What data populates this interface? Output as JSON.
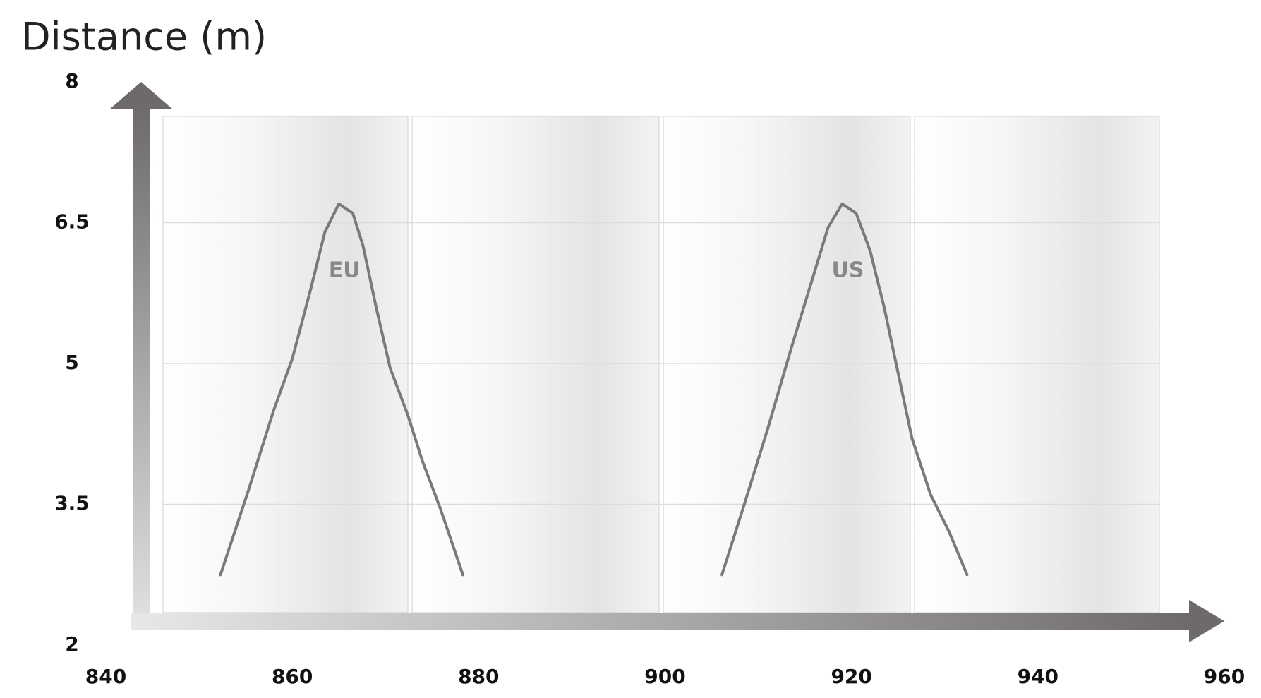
{
  "chart_data": {
    "type": "line",
    "title": "Distance (m)",
    "series": [
      {
        "name": "EU",
        "color": "#7a7a7a",
        "x": [
          852.3,
          855.3,
          858,
          860,
          862,
          863.5,
          865,
          866.5,
          867.6,
          869,
          870.5,
          872.4,
          874,
          875.9,
          878.3
        ],
        "values": [
          2.75,
          3.65,
          4.5,
          5.05,
          5.8,
          6.4,
          6.7,
          6.6,
          6.25,
          5.6,
          4.95,
          4.45,
          3.95,
          3.45,
          2.75
        ]
      },
      {
        "name": "US",
        "color": "#7a7a7a",
        "x": [
          906.1,
          908.5,
          911,
          913.5,
          915.5,
          917.5,
          919,
          920.5,
          922,
          923.5,
          925,
          926.5,
          928.5,
          930.5,
          932.4
        ],
        "values": [
          2.75,
          3.5,
          4.3,
          5.15,
          5.8,
          6.45,
          6.7,
          6.6,
          6.2,
          5.6,
          4.9,
          4.2,
          3.6,
          3.2,
          2.75
        ]
      }
    ],
    "xlim": [
      840,
      960
    ],
    "xticks": [
      840,
      860,
      880,
      900,
      920,
      940,
      960
    ],
    "ylim": [
      2,
      8
    ],
    "yticks": [
      2,
      3.5,
      5,
      6.5,
      8
    ],
    "grid": true
  }
}
